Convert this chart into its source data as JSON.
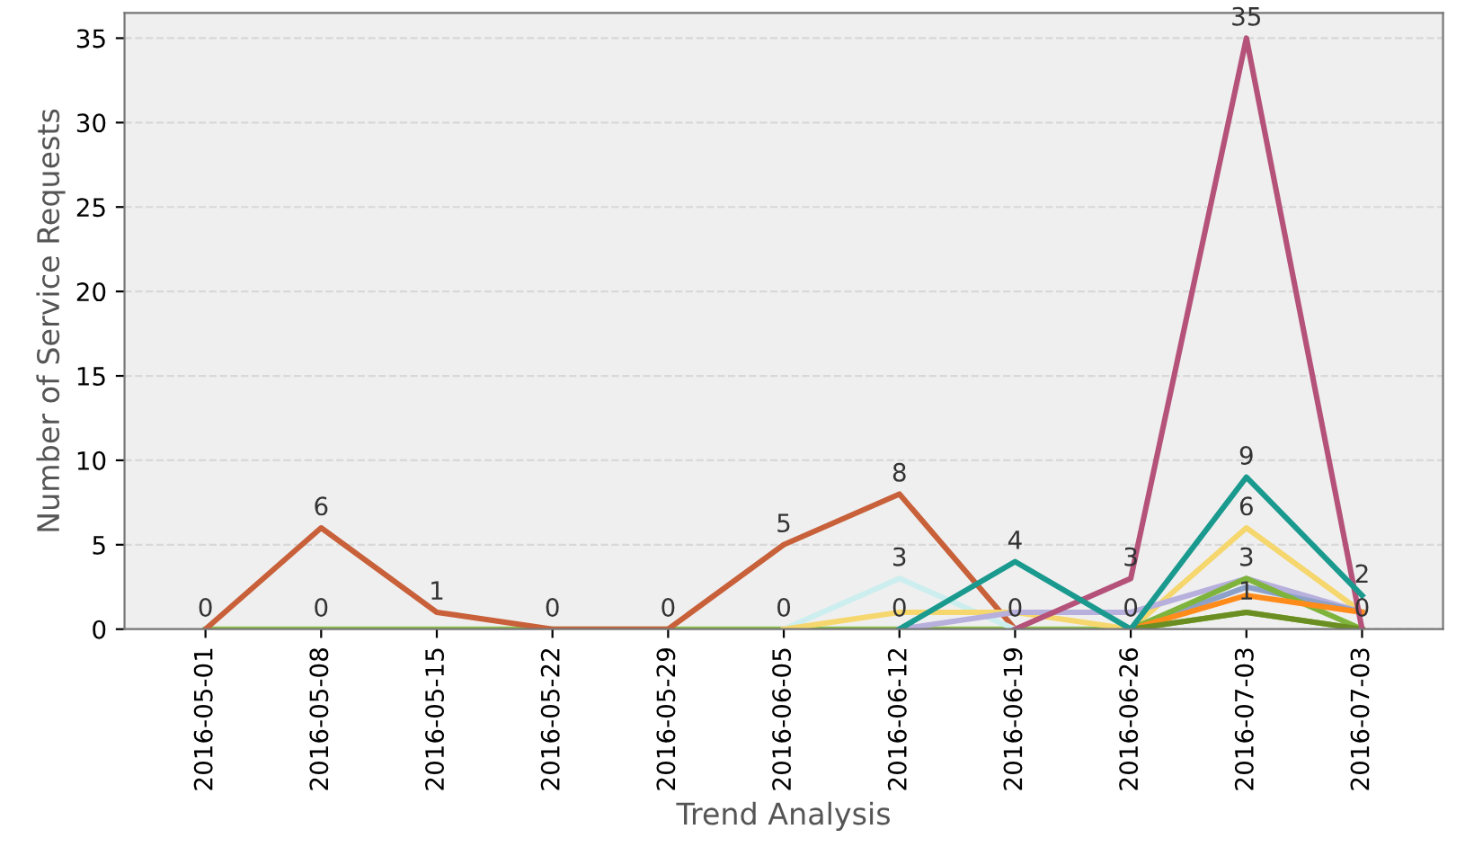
{
  "chart_data": {
    "type": "line",
    "xlabel": "Trend Analysis",
    "ylabel": "Number of Service Requests",
    "categories": [
      "2016-05-01",
      "2016-05-08",
      "2016-05-15",
      "2016-05-22",
      "2016-05-29",
      "2016-06-05",
      "2016-06-12",
      "2016-06-19",
      "2016-06-26",
      "2016-07-03",
      "2016-07-03"
    ],
    "ylim": [
      0,
      36.5
    ],
    "yticks": [
      0,
      5,
      10,
      15,
      20,
      25,
      30,
      35
    ],
    "grid": "y",
    "legend": false,
    "marker": "none",
    "line_style": "solid",
    "series": [
      {
        "color": "#8dc04a",
        "values": [
          0,
          0,
          0,
          0,
          0,
          0,
          0,
          0,
          0,
          1,
          0
        ],
        "value_labels": [
          null,
          "0",
          null,
          null,
          null,
          "0",
          "0",
          "0",
          "0",
          "1",
          "0"
        ]
      },
      {
        "color": "#c8603a",
        "values": [
          0,
          6,
          1,
          0,
          0,
          5,
          8,
          0,
          null,
          null,
          null
        ],
        "value_labels": [
          "0",
          "6",
          "1",
          "0",
          "0",
          "5",
          "8",
          null,
          null,
          null,
          null
        ]
      },
      {
        "color": "#cdeeee",
        "values": [
          null,
          null,
          null,
          null,
          null,
          0,
          3,
          0,
          null,
          null,
          null
        ],
        "value_labels": [
          null,
          null,
          null,
          null,
          null,
          null,
          "3",
          null,
          null,
          null,
          null
        ]
      },
      {
        "color": "#f5d76e",
        "values": [
          null,
          null,
          null,
          null,
          null,
          0,
          1,
          1,
          0,
          6,
          1
        ],
        "value_labels": [
          null,
          null,
          null,
          null,
          null,
          null,
          null,
          null,
          null,
          "6",
          null
        ]
      },
      {
        "color": "#b7b0dc",
        "values": [
          null,
          null,
          null,
          null,
          null,
          null,
          0,
          1,
          1,
          3,
          1
        ],
        "value_labels": [
          null,
          null,
          null,
          null,
          null,
          null,
          null,
          null,
          null,
          "3",
          null
        ]
      },
      {
        "color": "#8ca0c8",
        "values": [
          null,
          null,
          null,
          null,
          null,
          null,
          null,
          null,
          0,
          2.5,
          1
        ],
        "value_labels": [
          null,
          null,
          null,
          null,
          null,
          null,
          null,
          null,
          null,
          null,
          null
        ]
      },
      {
        "color": "#7fb43c",
        "values": [
          null,
          null,
          null,
          null,
          null,
          null,
          null,
          null,
          0,
          3,
          0
        ],
        "value_labels": [
          null,
          null,
          null,
          null,
          null,
          null,
          null,
          null,
          null,
          null,
          null
        ]
      },
      {
        "color": "#ff8c1a",
        "values": [
          null,
          null,
          null,
          null,
          null,
          null,
          null,
          null,
          0,
          2,
          1
        ],
        "value_labels": [
          null,
          null,
          null,
          null,
          null,
          null,
          null,
          null,
          null,
          null,
          null
        ]
      },
      {
        "color": "#6b8e23",
        "values": [
          null,
          null,
          null,
          null,
          null,
          null,
          null,
          null,
          0,
          1,
          0
        ],
        "value_labels": [
          null,
          null,
          null,
          null,
          null,
          null,
          null,
          null,
          null,
          null,
          null
        ]
      },
      {
        "color": "#b5527a",
        "values": [
          null,
          null,
          null,
          null,
          null,
          null,
          null,
          0,
          3,
          35,
          0
        ],
        "value_labels": [
          null,
          null,
          null,
          null,
          null,
          null,
          null,
          null,
          "3",
          "35",
          null
        ]
      },
      {
        "color": "#1a9a8e",
        "values": [
          null,
          null,
          null,
          null,
          null,
          null,
          0,
          4,
          0,
          9,
          2
        ],
        "value_labels": [
          null,
          null,
          null,
          null,
          null,
          null,
          null,
          "4",
          null,
          "9",
          "2"
        ]
      }
    ]
  }
}
